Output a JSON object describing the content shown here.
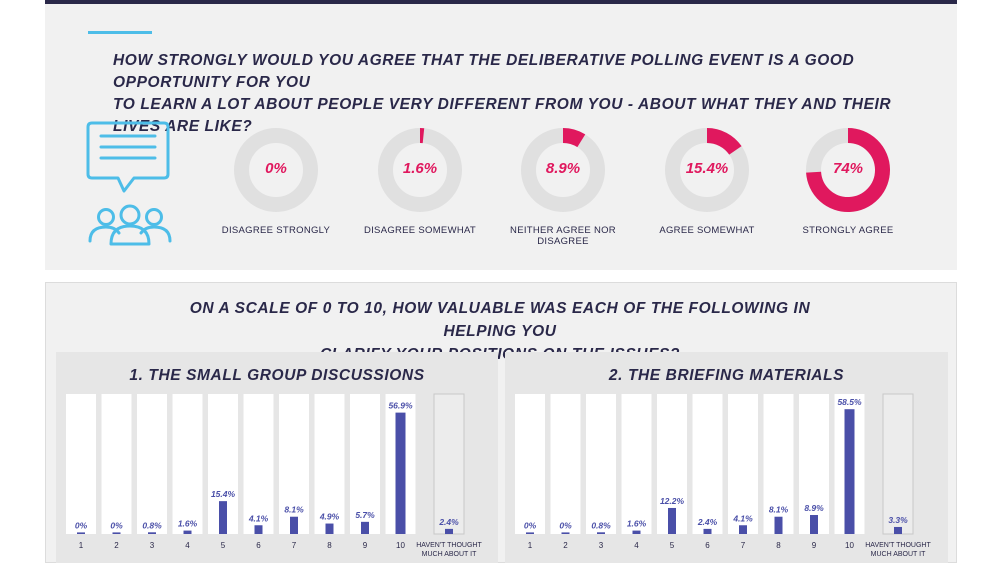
{
  "question1": {
    "text_line1": "HOW STRONGLY WOULD YOU AGREE THAT THE DELIBERATIVE POLLING EVENT IS A GOOD OPPORTUNITY FOR YOU",
    "text_line2": "TO LEARN A LOT ABOUT PEOPLE VERY DIFFERENT FROM YOU - ABOUT WHAT THEY AND THEIR LIVES ARE LIKE?",
    "icon": "chat-people-icon",
    "colors": {
      "accent": "#e0185e",
      "track": "#e0e0e0",
      "icon": "#4dbde8"
    }
  },
  "question2": {
    "text_line1": "ON A SCALE OF 0 TO 10, HOW VALUABLE WAS EACH OF THE FOLLOWING IN HELPING YOU",
    "text_line2": "CLARIFY YOUR POSITIONS ON THE ISSUES?",
    "colors": {
      "bar": "#4a4fa8",
      "column": "#ffffff",
      "other_column": "#ececec"
    }
  },
  "chart_data": [
    {
      "type": "pie",
      "categories": [
        "DISAGREE STRONGLY",
        "DISAGREE SOMEWHAT",
        "NEITHER AGREE NOR DISAGREE",
        "AGREE SOMEWHAT",
        "STRONGLY AGREE"
      ],
      "values": [
        0,
        1.6,
        8.9,
        15.4,
        74
      ],
      "value_labels": [
        "0%",
        "1.6%",
        "8.9%",
        "15.4%",
        "74%"
      ]
    },
    {
      "type": "bar",
      "title": "1. THE SMALL GROUP DISCUSSIONS",
      "categories": [
        "1",
        "2",
        "3",
        "4",
        "5",
        "6",
        "7",
        "8",
        "9",
        "10",
        "HAVEN'T THOUGHT MUCH ABOUT IT"
      ],
      "values": [
        0,
        0,
        0.8,
        1.6,
        15.4,
        4.1,
        8.1,
        4.9,
        5.7,
        56.9,
        2.4
      ],
      "value_labels": [
        "0%",
        "0%",
        "0.8%",
        "1.6%",
        "15.4%",
        "4.1%",
        "8.1%",
        "4.9%",
        "5.7%",
        "56.9%",
        "2.4%"
      ]
    },
    {
      "type": "bar",
      "title": "2. THE BRIEFING MATERIALS",
      "categories": [
        "1",
        "2",
        "3",
        "4",
        "5",
        "6",
        "7",
        "8",
        "9",
        "10",
        "HAVEN'T THOUGHT MUCH ABOUT IT"
      ],
      "values": [
        0,
        0,
        0.8,
        1.6,
        12.2,
        2.4,
        4.1,
        8.1,
        8.9,
        58.5,
        3.3
      ],
      "value_labels": [
        "0%",
        "0%",
        "0.8%",
        "1.6%",
        "12.2%",
        "2.4%",
        "4.1%",
        "8.1%",
        "8.9%",
        "58.5%",
        "3.3%"
      ]
    }
  ]
}
